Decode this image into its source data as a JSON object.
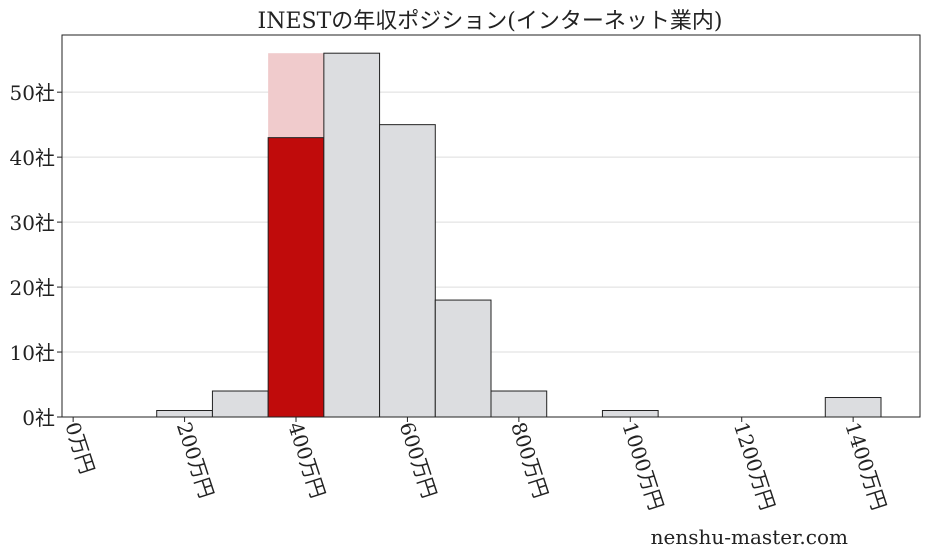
{
  "chart_data": {
    "type": "bar",
    "title": "INESTの年収ポジション(インターネット業内)",
    "xlabel": "",
    "ylabel": "",
    "xlim": [
      -20,
      1520
    ],
    "ylim": [
      0,
      58.8
    ],
    "grid": "horizontal",
    "bin_width": 100,
    "bins": [
      {
        "start": 150,
        "value": 1
      },
      {
        "start": 250,
        "value": 4
      },
      {
        "start": 350,
        "value": 56,
        "highlight": 43
      },
      {
        "start": 450,
        "value": 56
      },
      {
        "start": 550,
        "value": 45
      },
      {
        "start": 650,
        "value": 18
      },
      {
        "start": 750,
        "value": 4
      },
      {
        "start": 950,
        "value": 1
      },
      {
        "start": 1350,
        "value": 3
      }
    ],
    "x_ticks": [
      0,
      200,
      400,
      600,
      800,
      1000,
      1200,
      1400
    ],
    "x_tick_labels": [
      "0万円",
      "200万円",
      "400万円",
      "600万円",
      "800万円",
      "1000万円",
      "1200万円",
      "1400万円"
    ],
    "y_ticks": [
      0,
      10,
      20,
      30,
      40,
      50
    ],
    "y_tick_labels": [
      "0社",
      "10社",
      "20社",
      "30社",
      "40社",
      "50社"
    ],
    "colors": {
      "bar": "#dcdde0",
      "highlight": "#c00b0b",
      "highlight_bg": "#f0cbcc"
    }
  },
  "watermark": "nenshu-master.com"
}
